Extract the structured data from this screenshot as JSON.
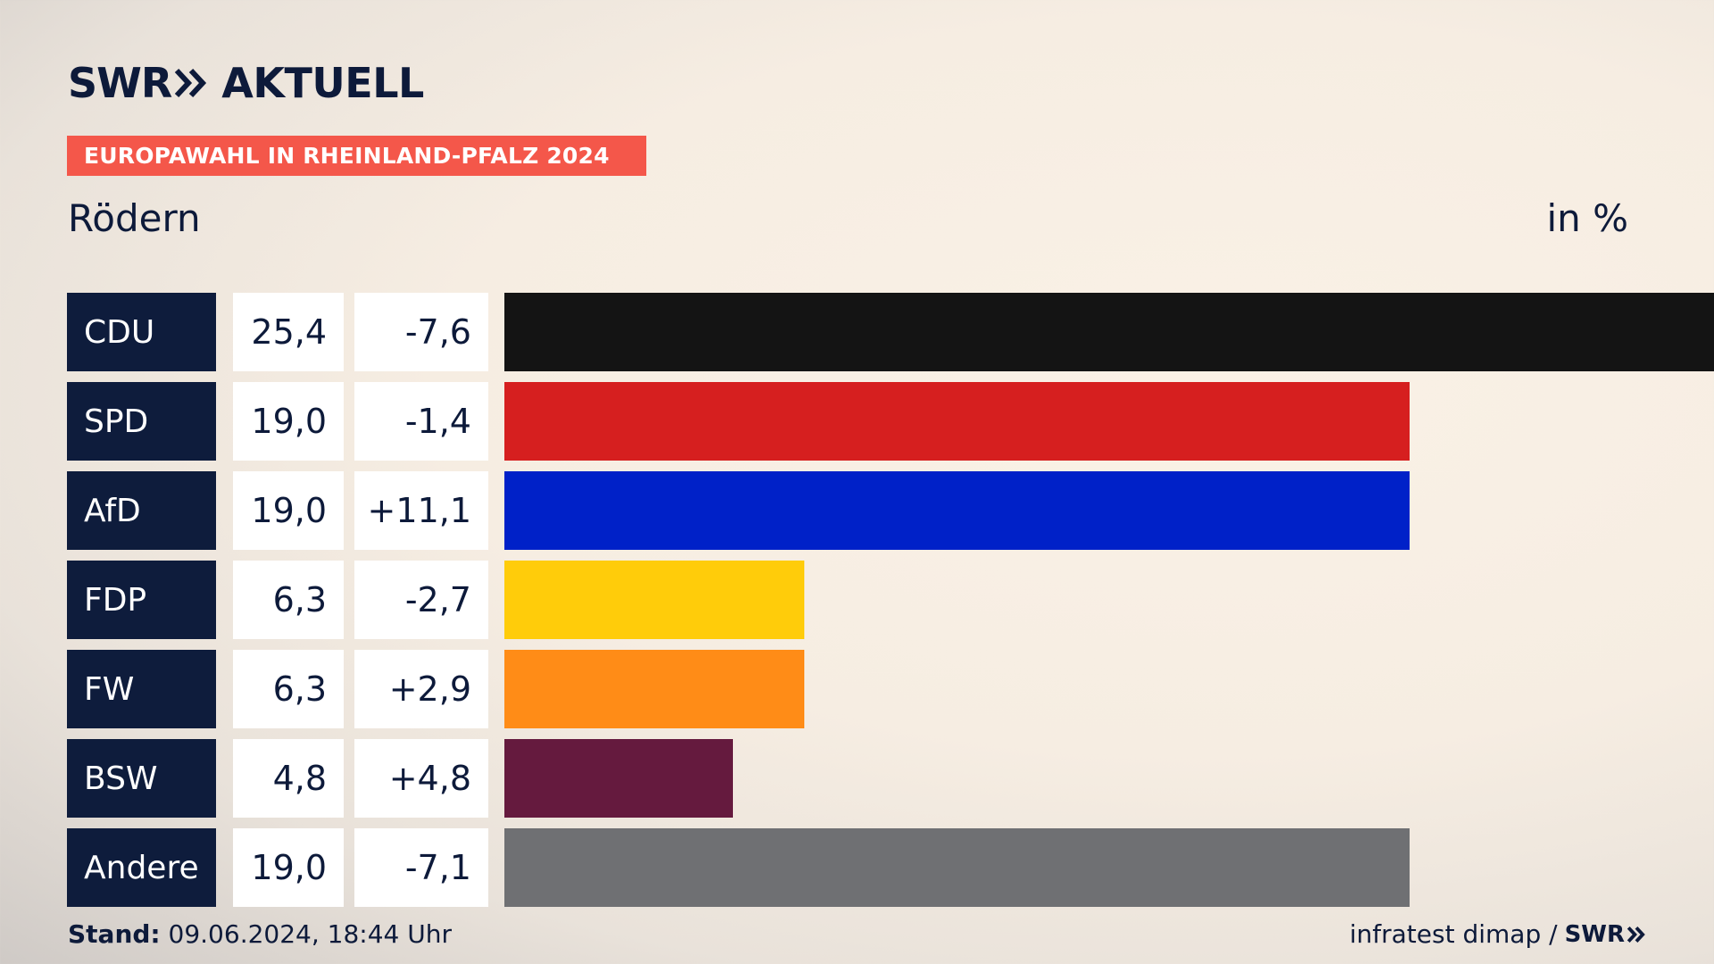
{
  "header": {
    "logo_text": "SWR",
    "brand_suffix": "AKTUELL",
    "banner": "EUROPAWAHL IN RHEINLAND-PFALZ 2024",
    "place": "Rödern",
    "unit": "in %"
  },
  "colors": {
    "navy": "#0e1c3c",
    "banner": "#f4574a"
  },
  "chart_data": {
    "type": "bar",
    "orientation": "horizontal",
    "categories": [
      "CDU",
      "SPD",
      "AfD",
      "FDP",
      "FW",
      "BSW",
      "Andere"
    ],
    "values": [
      25.4,
      19.0,
      19.0,
      6.3,
      6.3,
      4.8,
      19.0
    ],
    "labels": [
      "25,4",
      "19,0",
      "19,0",
      "6,3",
      "6,3",
      "4,8",
      "19,0"
    ],
    "changes": [
      "-7,6",
      "-1,4",
      "+11,1",
      "-2,7",
      "+2,9",
      "+4,8",
      "-7,1"
    ],
    "colors": [
      "#141414",
      "#d61f1f",
      "#0021c8",
      "#ffcc0a",
      "#ff8c17",
      "#651a3e",
      "#6f7073"
    ],
    "xlim": [
      0,
      25.4
    ]
  },
  "footer": {
    "stand_label": "Stand:",
    "stand_value": "09.06.2024, 18:44 Uhr",
    "source": "infratest dimap /",
    "source_logo": "SWR"
  }
}
